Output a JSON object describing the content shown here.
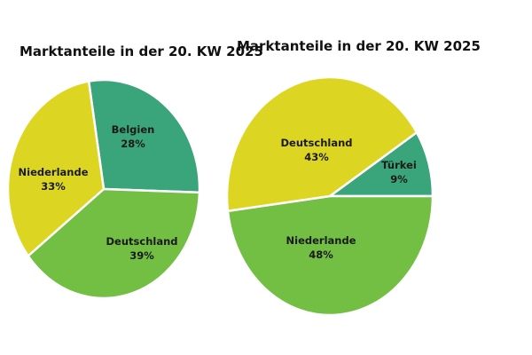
{
  "chart_data": [
    {
      "type": "pie",
      "title": "Marktanteile in der 20. KW 2025",
      "slices": [
        {
          "label": "Belgien",
          "value": 28,
          "value_label": "28%",
          "color": "#3aa57a"
        },
        {
          "label": "Deutschland",
          "value": 39,
          "value_label": "39%",
          "color": "#72bf44"
        },
        {
          "label": "Niederlande",
          "value": 33,
          "value_label": "33%",
          "color": "#dcd623"
        }
      ]
    },
    {
      "type": "pie",
      "title": "Marktanteile in der 20. KW 2025",
      "slices": [
        {
          "label": "Türkei",
          "value": 9,
          "value_label": "9%",
          "color": "#3aa57a"
        },
        {
          "label": "Niederlande",
          "value": 48,
          "value_label": "48%",
          "color": "#72bf44"
        },
        {
          "label": "Deutschland",
          "value": 43,
          "value_label": "43%",
          "color": "#dcd623"
        }
      ]
    }
  ]
}
